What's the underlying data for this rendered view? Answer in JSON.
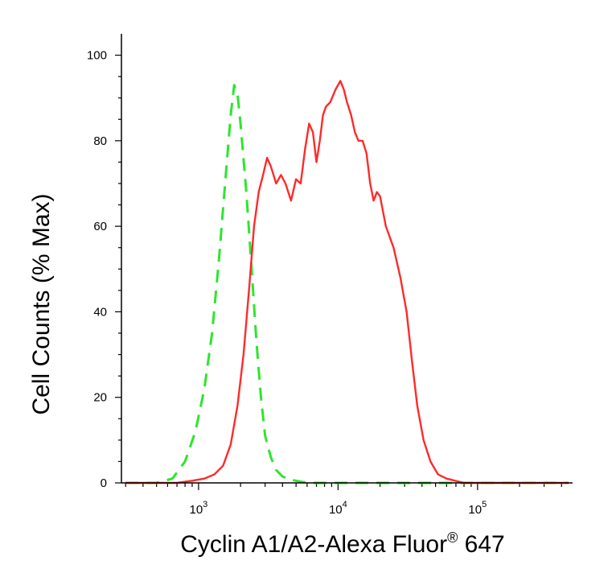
{
  "chart_data": {
    "type": "line",
    "title": "",
    "xlabel": "Cyclin A1/A2-Alexa Fluor",
    "xlabel_superscript": "®",
    "xlabel_suffix": " 647",
    "ylabel": "Cell Counts (% Max)",
    "x_scale": "log",
    "xlim": [
      280,
      480000
    ],
    "ylim": [
      0,
      105
    ],
    "x_ticks": [
      {
        "value": 1000,
        "base": "10",
        "exp": "3"
      },
      {
        "value": 10000,
        "base": "10",
        "exp": "4"
      },
      {
        "value": 100000,
        "base": "10",
        "exp": "5"
      }
    ],
    "y_ticks": [
      "0",
      "20",
      "40",
      "60",
      "80",
      "100"
    ],
    "grid": false,
    "legend": "none",
    "series": [
      {
        "color": "#2ee52e",
        "dash": "dashed",
        "x": [
          300,
          500,
          650,
          800,
          950,
          1100,
          1250,
          1400,
          1550,
          1700,
          1800,
          1900,
          2000,
          2200,
          2400,
          2600,
          2800,
          3000,
          3300,
          3600,
          4000,
          4500,
          5000,
          6000,
          8000,
          20000,
          100000,
          450000
        ],
        "y": [
          0,
          0,
          1,
          5,
          12,
          22,
          35,
          52,
          70,
          86,
          93,
          91,
          84,
          68,
          50,
          33,
          20,
          11,
          6,
          3,
          1.5,
          0.8,
          0.5,
          0,
          0,
          0,
          0,
          0
        ]
      },
      {
        "color": "#ff2a2a",
        "dash": "solid",
        "x": [
          300,
          700,
          900,
          1100,
          1300,
          1500,
          1700,
          1900,
          2100,
          2300,
          2500,
          2700,
          2900,
          3100,
          3300,
          3600,
          3900,
          4200,
          4600,
          5000,
          5400,
          5800,
          6200,
          6600,
          7000,
          7400,
          7800,
          8200,
          8800,
          9600,
          10400,
          11000,
          11600,
          12400,
          13200,
          14000,
          15000,
          16000,
          17000,
          18000,
          19000,
          20000,
          22000,
          25000,
          28000,
          31000,
          34000,
          37000,
          41000,
          46000,
          52000,
          60000,
          80000,
          450000
        ],
        "y": [
          0,
          0,
          0.5,
          1,
          2,
          4,
          9,
          18,
          30,
          45,
          60,
          68,
          72,
          76,
          74,
          70,
          72,
          70,
          66,
          71,
          70,
          78,
          84,
          82,
          75,
          80,
          86,
          88,
          89,
          92,
          94,
          92,
          89,
          86,
          82,
          80,
          80,
          77,
          70,
          66,
          68,
          67,
          60,
          55,
          48,
          40,
          28,
          18,
          10,
          5,
          2,
          1,
          0,
          0
        ]
      }
    ]
  }
}
